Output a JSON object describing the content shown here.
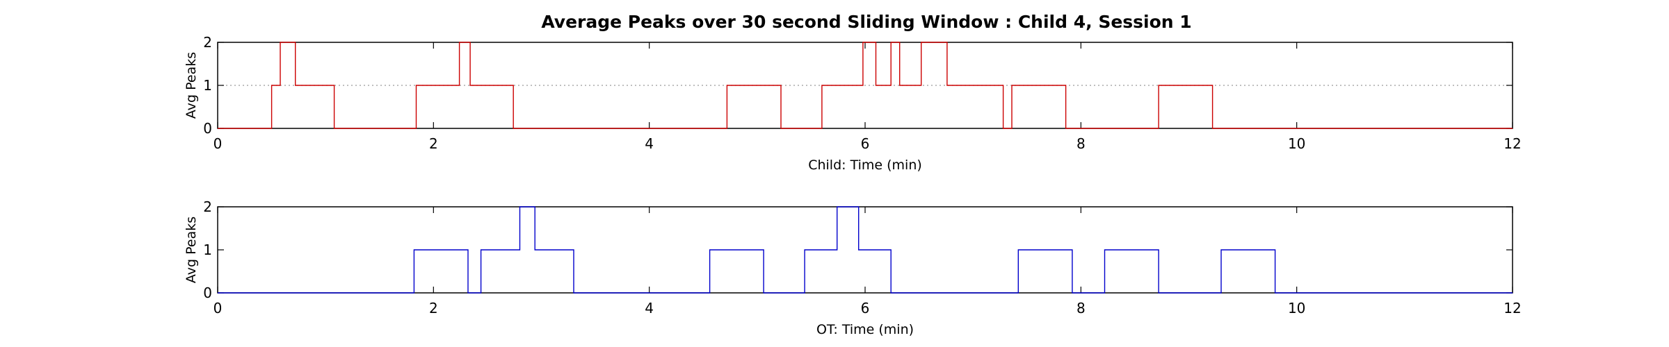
{
  "title": "Average Peaks over 30 second Sliding Window : Child 4, Session 1",
  "chart_data": [
    {
      "type": "line",
      "xlabel": "Child: Time (min)",
      "ylabel": "Avg Peaks",
      "xlim": [
        0,
        12
      ],
      "ylim": [
        0,
        2
      ],
      "xticks": [
        0,
        2,
        4,
        6,
        8,
        10,
        12
      ],
      "yticks": [
        0,
        1,
        2
      ],
      "reference_line": {
        "y": 1,
        "style": "dotted"
      },
      "series": [
        {
          "color": "#cc0000",
          "x": [
            0,
            0.5,
            0.5,
            0.58,
            0.58,
            0.72,
            0.72,
            1.08,
            1.08,
            1.84,
            1.84,
            2.24,
            2.24,
            2.34,
            2.34,
            2.74,
            2.74,
            4.72,
            4.72,
            5.22,
            5.22,
            5.6,
            5.6,
            5.98,
            5.98,
            6.1,
            6.1,
            6.24,
            6.24,
            6.32,
            6.32,
            6.52,
            6.52,
            6.76,
            6.76,
            6.8,
            6.8,
            7.28,
            7.28,
            7.36,
            7.36,
            7.86,
            7.86,
            8.72,
            8.72,
            9.22,
            9.22,
            12
          ],
          "y": [
            0,
            0,
            1,
            1,
            2,
            2,
            1,
            1,
            0,
            0,
            1,
            1,
            2,
            2,
            1,
            1,
            0,
            0,
            1,
            1,
            0,
            0,
            1,
            1,
            2,
            2,
            1,
            1,
            2,
            2,
            1,
            1,
            2,
            2,
            1,
            1,
            1,
            1,
            0,
            0,
            1,
            1,
            0,
            0,
            1,
            1,
            0,
            0
          ]
        }
      ]
    },
    {
      "type": "line",
      "xlabel": "OT: Time (min)",
      "ylabel": "Avg Peaks",
      "xlim": [
        0,
        12
      ],
      "ylim": [
        0,
        2
      ],
      "xticks": [
        0,
        2,
        4,
        6,
        8,
        10,
        12
      ],
      "yticks": [
        0,
        1,
        2
      ],
      "series": [
        {
          "color": "#0000cc",
          "x": [
            0,
            1.82,
            1.82,
            2.32,
            2.32,
            2.44,
            2.44,
            2.8,
            2.8,
            2.94,
            2.94,
            3.3,
            3.3,
            4.56,
            4.56,
            5.06,
            5.06,
            5.44,
            5.44,
            5.74,
            5.74,
            5.94,
            5.94,
            6.24,
            6.24,
            7.42,
            7.42,
            7.92,
            7.92,
            8.22,
            8.22,
            8.72,
            8.72,
            9.3,
            9.3,
            9.8,
            9.8,
            12
          ],
          "y": [
            0,
            0,
            1,
            1,
            0,
            0,
            1,
            1,
            2,
            2,
            1,
            1,
            0,
            0,
            1,
            1,
            0,
            0,
            1,
            1,
            2,
            2,
            1,
            1,
            0,
            0,
            1,
            1,
            0,
            0,
            1,
            1,
            0,
            0,
            1,
            1,
            0,
            0
          ]
        }
      ]
    }
  ]
}
